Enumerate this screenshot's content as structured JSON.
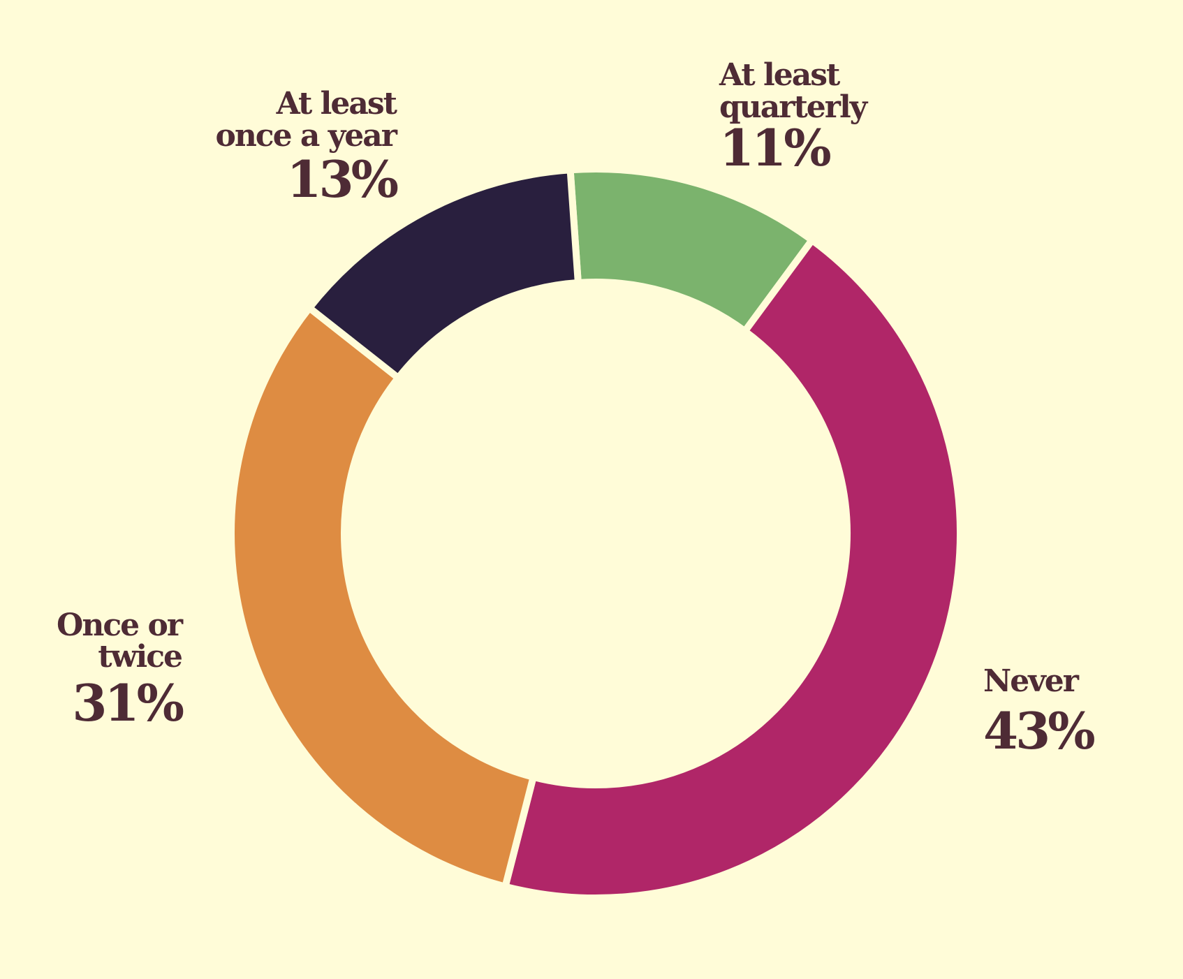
{
  "chart_data": {
    "type": "pie",
    "style": "donut",
    "slices": [
      {
        "label_lines": [
          "At least",
          "quarterly"
        ],
        "percent_label": "11%",
        "value": 11,
        "color": "#7BB36D"
      },
      {
        "label_lines": [
          "Never"
        ],
        "percent_label": "43%",
        "value": 43,
        "color": "#B02668"
      },
      {
        "label_lines": [
          "Once or",
          "twice"
        ],
        "percent_label": "31%",
        "value": 31,
        "color": "#DE8C42"
      },
      {
        "label_lines": [
          "At least",
          "once a year"
        ],
        "percent_label": "13%",
        "value": 13,
        "color": "#291F3E"
      }
    ]
  },
  "colors": {
    "background": "#FFFCD8",
    "label_text": "#4E2B35"
  }
}
